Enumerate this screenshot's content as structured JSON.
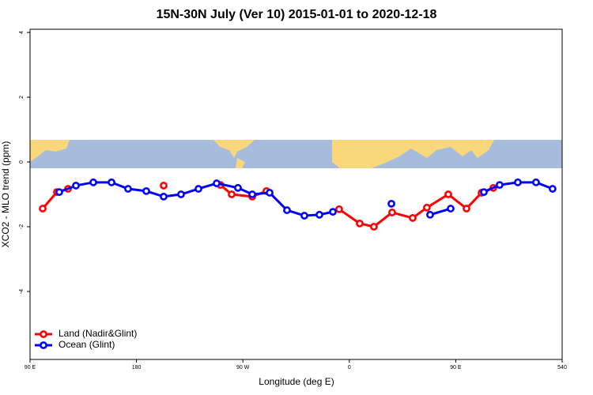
{
  "chart_data": {
    "type": "line",
    "title": "15N-30N July (Ver 10)   2015-01-01 to 2020-12-18",
    "x_label": "Longitude (deg E)",
    "y_label": "XCO2 - MLO trend (ppm)",
    "xlim": [
      90,
      540
    ],
    "xticks": [
      {
        "value": 90,
        "label": "90 E"
      },
      180,
      {
        "value": 270,
        "label": "90 W"
      },
      {
        "value": 360,
        "label": "0"
      },
      {
        "value": 450,
        "label": "90 E"
      },
      540
    ],
    "ylim": [
      -6.1,
      4.1
    ],
    "yticks": [
      -4,
      -2,
      0,
      2,
      4
    ],
    "legend": "bottom-left",
    "series": [
      {
        "name": "Land (Nadir&Glint)",
        "color": "#ff0000",
        "x": [
          100.7,
          112.7,
          122.1,
          null,
          203,
          null,
          251,
          260.5,
          277.9,
          289.9,
          null,
          351.4,
          368.8,
          380.8,
          396.2,
          413.6,
          425.6,
          443.7,
          459.1,
          471.8,
          481.8
        ],
        "values": [
          -1.44,
          -0.93,
          -0.83,
          null,
          -0.73,
          null,
          -0.71,
          -1.0,
          -1.07,
          -0.9,
          null,
          -1.46,
          -1.9,
          -2.0,
          -1.56,
          -1.73,
          -1.41,
          -1.0,
          -1.44,
          -0.95,
          -0.8
        ]
      },
      {
        "name": "Ocean (Glint)",
        "color": "#0000ff",
        "x": [
          114.7,
          128.8,
          143.5,
          158.9,
          172.9,
          188.3,
          203,
          217.7,
          232.4,
          247.8,
          265.8,
          277.9,
          292.6,
          307.3,
          322.0,
          334.7,
          346.1,
          null,
          395.6,
          null,
          428.3,
          445.7,
          null,
          473.8,
          487.1,
          502.5,
          517.9,
          531.9
        ],
        "values": [
          -0.93,
          -0.73,
          -0.63,
          -0.63,
          -0.83,
          -0.9,
          -1.07,
          -1.0,
          -0.83,
          -0.66,
          -0.8,
          -1.0,
          -0.95,
          -1.49,
          -1.66,
          -1.63,
          -1.54,
          null,
          -1.29,
          null,
          -1.63,
          -1.44,
          null,
          -0.93,
          -0.71,
          -0.63,
          -0.63,
          -0.83
        ]
      }
    ]
  }
}
